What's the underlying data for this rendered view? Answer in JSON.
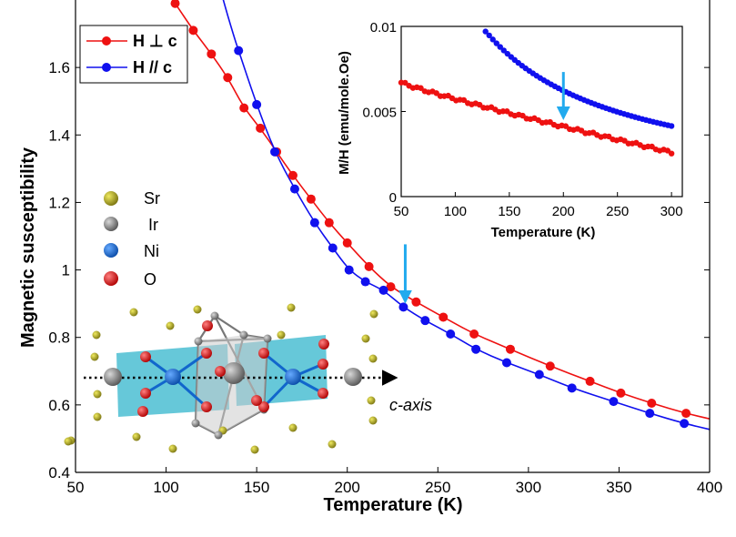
{
  "chart_data": [
    {
      "id": "main",
      "type": "line",
      "title": "",
      "xlabel": "Temperature (K)",
      "ylabel": "Magnetic susceptibility",
      "xlim": [
        50,
        400
      ],
      "ylim": [
        0.4,
        1.8
      ],
      "xticks": [
        50,
        100,
        150,
        200,
        250,
        300,
        350,
        400
      ],
      "xticklabels": [
        "50",
        "100",
        "150",
        "200",
        "250",
        "300",
        "350",
        "400"
      ],
      "yticks": [
        0.4,
        0.6,
        0.8,
        1.0,
        1.2,
        1.4,
        1.6
      ],
      "yticklabels": [
        "0.4",
        "0.6",
        "0.8",
        "1",
        "1.2",
        "1.4",
        "1.6"
      ],
      "series": [
        {
          "name": "H ⊥ c",
          "color": "#ee1111",
          "x": [
            105,
            115,
            125,
            134,
            143,
            152,
            161,
            170,
            180,
            190,
            200,
            212,
            224,
            238,
            253,
            270,
            290,
            312,
            334,
            351,
            368,
            387
          ],
          "y": [
            1.79,
            1.71,
            1.64,
            1.57,
            1.48,
            1.42,
            1.35,
            1.28,
            1.21,
            1.14,
            1.08,
            1.01,
            0.95,
            0.905,
            0.86,
            0.81,
            0.765,
            0.715,
            0.67,
            0.635,
            0.605,
            0.575
          ]
        },
        {
          "name": "H // c",
          "color": "#1010ee",
          "x": [
            140,
            150,
            160,
            171,
            182,
            192,
            201,
            210,
            220,
            231,
            243,
            257,
            271,
            288,
            306,
            324,
            347,
            367,
            386
          ],
          "y": [
            1.65,
            1.49,
            1.35,
            1.24,
            1.14,
            1.065,
            1.0,
            0.965,
            0.94,
            0.89,
            0.85,
            0.81,
            0.765,
            0.725,
            0.69,
            0.65,
            0.61,
            0.575,
            0.545
          ]
        }
      ],
      "annotations": [
        {
          "type": "arrow",
          "x": 232,
          "y_from": 0.995,
          "y_to": 0.905,
          "color": "#22aaee"
        },
        {
          "type": "text",
          "text": "c-axis"
        }
      ],
      "legend": {
        "location": "top-left",
        "entries": [
          "H ⊥ c",
          "H // c"
        ]
      }
    },
    {
      "id": "inset",
      "type": "scatter",
      "title": "",
      "xlabel": "Temperature (K)",
      "ylabel": "M/H (emu/mole.Oe)",
      "xlim": [
        50,
        310
      ],
      "ylim": [
        0,
        0.01
      ],
      "xticks": [
        50,
        100,
        150,
        200,
        250,
        300
      ],
      "xticklabels": [
        "50",
        "100",
        "150",
        "200",
        "250",
        "300"
      ],
      "yticks": [
        0,
        0.005,
        0.01
      ],
      "yticklabels": [
        "0",
        "0.005",
        "0.01"
      ],
      "series": [
        {
          "name": "H ⊥ c",
          "color": "#ee1111",
          "temp_range": [
            50,
            300
          ],
          "n": 70,
          "y_start": 0.0067,
          "y_end": 0.0026,
          "curve": 0.9
        },
        {
          "name": "H // c",
          "color": "#1010ee",
          "temp_range": [
            128,
            300
          ],
          "n": 52,
          "c": 1.23,
          "x0": 0,
          "model": "y = c / T (emu/mole.Oe)"
        }
      ],
      "annotations": [
        {
          "type": "arrow",
          "x": 200,
          "y_from": 0.007,
          "y_to": 0.0046,
          "color": "#22aaee"
        }
      ]
    }
  ],
  "structure_legend": [
    {
      "label": "Sr",
      "color": "#a8a018"
    },
    {
      "label": "Ir",
      "color": "#777777"
    },
    {
      "label": "Ni",
      "color": "#1166cc"
    },
    {
      "label": "O",
      "color": "#dd1111"
    }
  ]
}
